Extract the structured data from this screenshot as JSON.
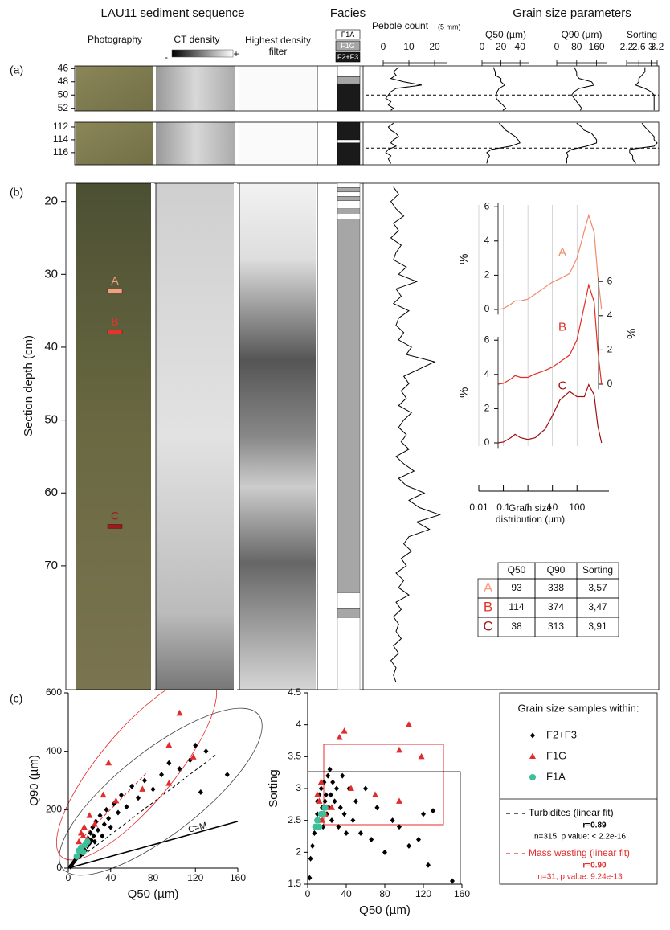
{
  "header": {
    "title": "LAU11 sediment sequence",
    "photography": "Photography",
    "ct_density": "CT density",
    "ct_min": "-",
    "ct_max": "+",
    "filter": "Highest density filter",
    "facies": "Facies",
    "grain_title": "Grain size parameters"
  },
  "facies_legend": [
    {
      "label": "F1A",
      "color": "#ffffff"
    },
    {
      "label": "F1G",
      "color": "#a6a6a6"
    },
    {
      "label": "F2+F3",
      "color": "#1a1a1a"
    }
  ],
  "columns": [
    {
      "title": "Pebble count",
      "unit": "(5 mm)",
      "xlim": [
        0,
        25
      ],
      "xticks": [
        0,
        10,
        20
      ]
    },
    {
      "title": "Q50 (µm)",
      "xlim": [
        0,
        50
      ],
      "xticks": [
        0,
        20,
        40
      ]
    },
    {
      "title": "Q90 (µm)",
      "xlim": [
        0,
        200
      ],
      "xticks": [
        0,
        80,
        160
      ]
    },
    {
      "title": "Sorting",
      "xlim": [
        2.2,
        3.2
      ],
      "xticks": [
        2.2,
        2.6,
        3,
        3.2
      ]
    }
  ],
  "panel_a": {
    "label": "(a)",
    "sections": [
      {
        "ylim": [
          45.6,
          52.4
        ],
        "yticks": [
          46,
          48,
          50,
          52
        ],
        "cut": 50,
        "facies": [
          [
            45.6,
            47.2,
            "F1A"
          ],
          [
            47.2,
            48.3,
            "F1G"
          ],
          [
            48.3,
            52.4,
            "F2+F3"
          ]
        ],
        "depth": [
          45.8,
          46.5,
          47,
          47.5,
          48,
          48.5,
          49,
          49.5,
          50,
          50.5,
          51,
          51.5,
          52,
          52.3
        ],
        "profiles": [
          [
            6,
            4,
            5,
            3,
            8,
            15,
            5,
            3,
            2,
            1,
            3,
            2,
            4,
            3
          ],
          [
            12,
            14,
            14,
            20,
            20,
            24,
            18,
            16,
            15,
            15,
            18,
            22,
            25,
            22
          ],
          [
            70,
            80,
            80,
            90,
            140,
            150,
            90,
            70,
            60,
            70,
            80,
            90,
            100,
            95
          ],
          [
            2.8,
            2.8,
            2.7,
            2.6,
            2.6,
            2.5,
            2.8,
            3.0,
            3.1,
            3.1,
            3.1,
            3.1,
            3.1,
            3.1
          ]
        ]
      },
      {
        "ylim": [
          111.25,
          117.9
        ],
        "yticks": [
          112,
          114,
          116
        ],
        "cut": 115.3,
        "facies": [
          [
            111.25,
            114.0,
            "F2+F3"
          ],
          [
            114.0,
            114.5,
            "F1A"
          ],
          [
            114.5,
            117.9,
            "F2+F3"
          ]
        ],
        "depth": [
          111.4,
          112,
          112.5,
          113,
          113.5,
          114,
          114.5,
          115,
          115.5,
          116,
          116.5,
          117,
          117.7
        ],
        "profiles": [
          [
            4,
            2,
            3,
            5,
            6,
            4,
            3,
            5,
            2,
            1,
            3,
            2,
            3
          ],
          [
            18,
            22,
            25,
            30,
            35,
            38,
            40,
            30,
            10,
            5,
            8,
            6,
            5
          ],
          [
            80,
            100,
            110,
            140,
            150,
            160,
            160,
            120,
            60,
            40,
            45,
            40,
            40
          ],
          [
            2.7,
            2.8,
            2.9,
            3.0,
            3.1,
            3.1,
            3.2,
            3.1,
            2.3,
            2.3,
            2.4,
            2.4,
            2.5
          ]
        ]
      }
    ]
  },
  "panel_b": {
    "label": "(b)",
    "ylabel": "Section depth (cm)",
    "ylim": [
      17.5,
      87
    ],
    "yticks": [
      20,
      30,
      40,
      50,
      60,
      70
    ],
    "markers": [
      {
        "label": "A",
        "depth": 32.3,
        "color": "#f4a080"
      },
      {
        "label": "B",
        "depth": 37.9,
        "color": "#e8332a"
      },
      {
        "label": "C",
        "depth": 64.6,
        "color": "#a01a1a"
      }
    ],
    "facies": [
      [
        17.5,
        18.1,
        "F1A"
      ],
      [
        18.1,
        18.7,
        "F1G"
      ],
      [
        18.7,
        19.3,
        "F1A"
      ],
      [
        19.3,
        19.9,
        "F1G"
      ],
      [
        19.9,
        21,
        "F1A"
      ],
      [
        21,
        21.6,
        "F1G"
      ],
      [
        21.6,
        22.4,
        "F1A"
      ],
      [
        22.4,
        73.7,
        "F1G"
      ],
      [
        73.7,
        75.9,
        "F1A"
      ],
      [
        75.9,
        77.1,
        "F1G"
      ],
      [
        77.1,
        87,
        "F1A"
      ]
    ],
    "depth": [
      18,
      19,
      20,
      21,
      22,
      23,
      24,
      25,
      26,
      27,
      28,
      29,
      30,
      31,
      32,
      33,
      34,
      35,
      36,
      37,
      38,
      39,
      40,
      41,
      42,
      43,
      44,
      45,
      46,
      47,
      48,
      49,
      50,
      51,
      52,
      53,
      54,
      55,
      56,
      57,
      58,
      59,
      60,
      61,
      62,
      63,
      64,
      65,
      66,
      67,
      68,
      69,
      70,
      71,
      72,
      73,
      74,
      75,
      76,
      77,
      78,
      79,
      80,
      81,
      82,
      83,
      84,
      85,
      86
    ],
    "pebble": [
      4,
      6,
      3,
      5,
      8,
      4,
      6,
      3,
      7,
      5,
      4,
      9,
      6,
      13,
      5,
      7,
      4,
      10,
      6,
      5,
      8,
      6,
      11,
      9,
      20,
      14,
      8,
      10,
      7,
      9,
      6,
      11,
      8,
      6,
      9,
      7,
      10,
      5,
      8,
      12,
      6,
      9,
      16,
      10,
      14,
      22,
      13,
      18,
      10,
      8,
      11,
      7,
      9,
      5,
      8,
      6,
      10,
      5,
      7,
      4,
      6,
      5,
      7,
      4,
      6,
      3,
      5,
      4,
      5
    ]
  },
  "chart_data": [
    {
      "type": "line",
      "xlabel": "Grain size distribution (µm)",
      "ylabel": "%",
      "log_x": true,
      "xlim": [
        0.01,
        2000
      ],
      "xticks": [
        0.01,
        0.1,
        1,
        10,
        100
      ],
      "ylim": [
        -0.3,
        6.2
      ],
      "yticks": [
        0,
        2,
        4,
        6
      ],
      "grid": true,
      "x": [
        0.06,
        0.1,
        0.2,
        0.3,
        0.5,
        1,
        2,
        5,
        10,
        20,
        50,
        100,
        200,
        300,
        500,
        700,
        1000
      ],
      "series": [
        {
          "name": "A",
          "color": "#f08a6a",
          "axis": "y",
          "values": [
            0,
            0.05,
            0.3,
            0.5,
            0.5,
            0.6,
            0.9,
            1.3,
            1.6,
            1.8,
            2.1,
            3,
            4.6,
            5.5,
            4.5,
            2,
            0
          ]
        },
        {
          "name": "B",
          "color": "#e03020",
          "axis": "y2",
          "values": [
            0,
            0.05,
            0.3,
            0.5,
            0.4,
            0.4,
            0.6,
            0.8,
            1,
            1.3,
            1.7,
            2.6,
            4.6,
            5.8,
            4.8,
            2,
            0
          ]
        },
        {
          "name": "C",
          "color": "#a01010",
          "axis": "y3",
          "values": [
            0,
            0.05,
            0.3,
            0.5,
            0.3,
            0.2,
            0.3,
            0.8,
            1.6,
            2.5,
            3,
            2.7,
            2.7,
            3.4,
            2.8,
            1,
            0
          ]
        }
      ]
    },
    {
      "type": "scatter",
      "xlabel": "Q50 (µm)",
      "ylabel": "Q90 (µm)",
      "xlim": [
        0,
        160
      ],
      "ylim": [
        0,
        600
      ],
      "xticks": [
        0,
        40,
        80,
        120,
        160
      ],
      "yticks": [
        0,
        200,
        400,
        600
      ],
      "annotation": "C=M",
      "series": [
        {
          "name": "F2+F3",
          "color": "#000000",
          "marker": "diamond",
          "x": [
            5,
            7,
            8,
            10,
            10,
            12,
            12,
            14,
            14,
            15,
            16,
            17,
            18,
            19,
            20,
            21,
            22,
            23,
            24,
            25,
            26,
            28,
            30,
            32,
            34,
            36,
            38,
            40,
            43,
            47,
            50,
            55,
            60,
            66,
            72,
            80,
            88,
            95,
            105,
            120,
            125,
            150,
            130,
            115,
            3,
            2
          ],
          "values": [
            20,
            30,
            35,
            40,
            55,
            45,
            60,
            50,
            70,
            80,
            60,
            90,
            75,
            100,
            85,
            120,
            95,
            140,
            110,
            90,
            160,
            130,
            180,
            110,
            150,
            200,
            170,
            140,
            220,
            190,
            250,
            210,
            280,
            240,
            300,
            270,
            320,
            360,
            340,
            420,
            260,
            320,
            400,
            370,
            10,
            5
          ]
        },
        {
          "name": "F1G",
          "color": "#e32b2b",
          "marker": "triangle",
          "x": [
            105,
            38,
            33,
            95,
            118,
            95,
            70,
            45,
            20,
            15,
            12,
            18,
            10,
            25,
            14
          ],
          "values": [
            530,
            360,
            250,
            420,
            380,
            290,
            270,
            230,
            180,
            140,
            120,
            100,
            90,
            150,
            110
          ]
        },
        {
          "name": "F1A",
          "color": "#3dbf9a",
          "marker": "circle",
          "x": [
            8,
            10,
            12,
            14,
            16,
            18
          ],
          "values": [
            40,
            60,
            70,
            55,
            80,
            90
          ]
        }
      ]
    },
    {
      "type": "scatter",
      "xlabel": "Q50 (µm)",
      "ylabel": "Sorting",
      "xlim": [
        0,
        160
      ],
      "ylim": [
        1.5,
        4.5
      ],
      "xticks": [
        0,
        40,
        80,
        120,
        160
      ],
      "yticks": [
        1.5,
        2,
        2.5,
        3,
        3.5,
        4,
        4.5
      ],
      "series": [
        {
          "color": "#000000",
          "marker": "diamond",
          "x": [
            5,
            7,
            8,
            10,
            10,
            12,
            12,
            14,
            14,
            15,
            16,
            17,
            18,
            19,
            20,
            21,
            22,
            23,
            24,
            25,
            26,
            28,
            30,
            32,
            34,
            36,
            38,
            40,
            43,
            47,
            50,
            55,
            60,
            66,
            72,
            80,
            88,
            95,
            105,
            120,
            125,
            150,
            130,
            115,
            3,
            2
          ],
          "values": [
            2.1,
            2.3,
            2.4,
            2.6,
            2.8,
            2.5,
            2.9,
            2.6,
            3.0,
            2.7,
            2.4,
            3.1,
            2.8,
            2.9,
            2.6,
            3.2,
            2.7,
            3.3,
            2.9,
            2.5,
            3.1,
            2.8,
            3.0,
            2.4,
            2.7,
            3.2,
            2.6,
            2.3,
            3.0,
            2.5,
            2.8,
            2.3,
            3.0,
            2.2,
            2.7,
            2.0,
            2.5,
            2.4,
            2.1,
            2.6,
            1.8,
            1.55,
            2.65,
            2.2,
            1.9,
            1.6
          ]
        },
        {
          "color": "#e32b2b",
          "marker": "triangle",
          "x": [
            105,
            38,
            33,
            95,
            118,
            95,
            70,
            45,
            20,
            15,
            12,
            18,
            10,
            25,
            14
          ],
          "values": [
            4.0,
            3.9,
            3.8,
            3.6,
            3.5,
            2.8,
            2.9,
            3.0,
            2.7,
            2.5,
            2.8,
            2.6,
            2.9,
            2.7,
            3.1
          ]
        },
        {
          "color": "#3dbf9a",
          "marker": "circle",
          "x": [
            8,
            10,
            12,
            14,
            16,
            18
          ],
          "values": [
            2.4,
            2.5,
            2.4,
            2.6,
            2.6,
            2.7
          ]
        }
      ]
    }
  ],
  "table": {
    "header": [
      "Q50",
      "Q90",
      "Sorting"
    ],
    "rows": [
      [
        "A",
        93,
        338,
        "3,57"
      ],
      [
        "B",
        114,
        374,
        "3,47"
      ],
      [
        "C",
        38,
        313,
        "3,91"
      ]
    ]
  },
  "panel_c": {
    "label": "(c)"
  },
  "legend": {
    "title": "Grain size samples within:",
    "turbidites": {
      "label": "Turbidites (linear fit)",
      "r": "r=0.89",
      "stats": "n=315, p value: < 2.2e-16"
    },
    "mass": {
      "label": "Mass wasting (linear fit)",
      "r": "r=0.90",
      "stats": "n=31, p value: 9.24e-13"
    }
  }
}
